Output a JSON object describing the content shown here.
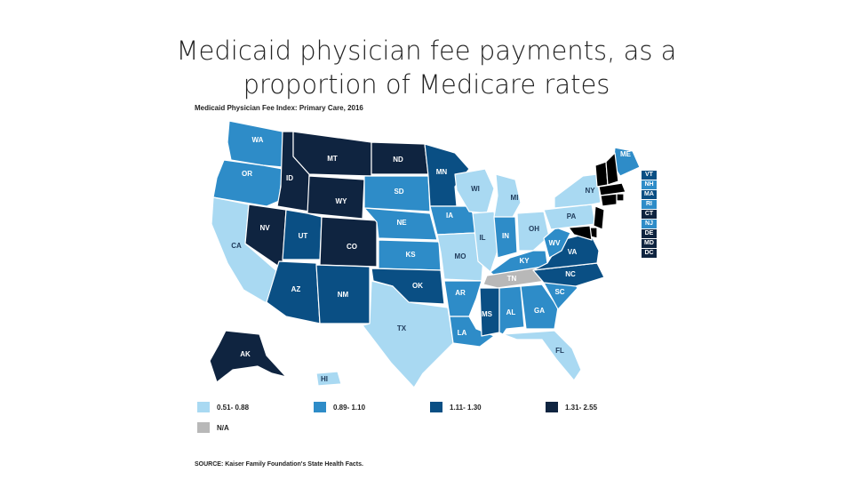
{
  "title_line1": "Medicaid physician fee payments, as a",
  "title_line2": "proportion of Medicare rates",
  "map_title": "Medicaid Physician Fee Index: Primary Care, 2016",
  "colors": {
    "c1": "#a9d9f2",
    "c2": "#2e8cc8",
    "c3": "#0a4f84",
    "c4": "#0f2440",
    "na": "#b8b8b8"
  },
  "legend": [
    {
      "label": "0.51- 0.88",
      "color": "#a9d9f2"
    },
    {
      "label": "0.89- 1.10",
      "color": "#2e8cc8"
    },
    {
      "label": "1.11- 1.30",
      "color": "#0a4f84"
    },
    {
      "label": "1.31- 2.55",
      "color": "#0f2440"
    },
    {
      "label": "N/A",
      "color": "#b8b8b8"
    }
  ],
  "states": {
    "WA": {
      "label": "WA",
      "cat": "c2"
    },
    "OR": {
      "label": "OR",
      "cat": "c2"
    },
    "CA": {
      "label": "CA",
      "cat": "c1"
    },
    "ID": {
      "label": "ID",
      "cat": "c4"
    },
    "NV": {
      "label": "NV",
      "cat": "c4"
    },
    "MT": {
      "label": "MT",
      "cat": "c4"
    },
    "WY": {
      "label": "WY",
      "cat": "c4"
    },
    "UT": {
      "label": "UT",
      "cat": "c3"
    },
    "AZ": {
      "label": "AZ",
      "cat": "c3"
    },
    "CO": {
      "label": "CO",
      "cat": "c4"
    },
    "NM": {
      "label": "NM",
      "cat": "c3"
    },
    "ND": {
      "label": "ND",
      "cat": "c4"
    },
    "SD": {
      "label": "SD",
      "cat": "c2"
    },
    "NE": {
      "label": "NE",
      "cat": "c2"
    },
    "KS": {
      "label": "KS",
      "cat": "c2"
    },
    "OK": {
      "label": "OK",
      "cat": "c3"
    },
    "TX": {
      "label": "TX",
      "cat": "c1"
    },
    "MN": {
      "label": "MN",
      "cat": "c3"
    },
    "IA": {
      "label": "IA",
      "cat": "c2"
    },
    "MO": {
      "label": "MO",
      "cat": "c1"
    },
    "AR": {
      "label": "AR",
      "cat": "c2"
    },
    "LA": {
      "label": "LA",
      "cat": "c2"
    },
    "WI": {
      "label": "WI",
      "cat": "c1"
    },
    "IL": {
      "label": "IL",
      "cat": "c1"
    },
    "MI": {
      "label": "MI",
      "cat": "c1"
    },
    "IN": {
      "label": "IN",
      "cat": "c2"
    },
    "OH": {
      "label": "OH",
      "cat": "c1"
    },
    "KY": {
      "label": "KY",
      "cat": "c2"
    },
    "TN": {
      "label": "TN",
      "cat": "na"
    },
    "MS": {
      "label": "MS",
      "cat": "c3"
    },
    "AL": {
      "label": "AL",
      "cat": "c2"
    },
    "GA": {
      "label": "GA",
      "cat": "c2"
    },
    "FL": {
      "label": "FL",
      "cat": "c1"
    },
    "SC": {
      "label": "SC",
      "cat": "c2"
    },
    "NC": {
      "label": "NC",
      "cat": "c3"
    },
    "VA": {
      "label": "VA",
      "cat": "c3"
    },
    "WV": {
      "label": "WV",
      "cat": "c2"
    },
    "PA": {
      "label": "PA",
      "cat": "c1"
    },
    "NY": {
      "label": "NY",
      "cat": "c1"
    },
    "ME": {
      "label": "ME",
      "cat": "c2"
    },
    "AK": {
      "label": "AK",
      "cat": "c4"
    },
    "HI": {
      "label": "HI",
      "cat": "c1"
    }
  },
  "northeast": [
    {
      "label": "VT",
      "cat": "c3"
    },
    {
      "label": "NH",
      "cat": "c2"
    },
    {
      "label": "MA",
      "cat": "c3"
    },
    {
      "label": "RI",
      "cat": "c2"
    },
    {
      "label": "CT",
      "cat": "c4"
    },
    {
      "label": "NJ",
      "cat": "c2"
    },
    {
      "label": "DE",
      "cat": "c4"
    },
    {
      "label": "MD",
      "cat": "c4"
    },
    {
      "label": "DC",
      "cat": "c4"
    }
  ],
  "source": "SOURCE: Kaiser Family Foundation's State Health Facts."
}
